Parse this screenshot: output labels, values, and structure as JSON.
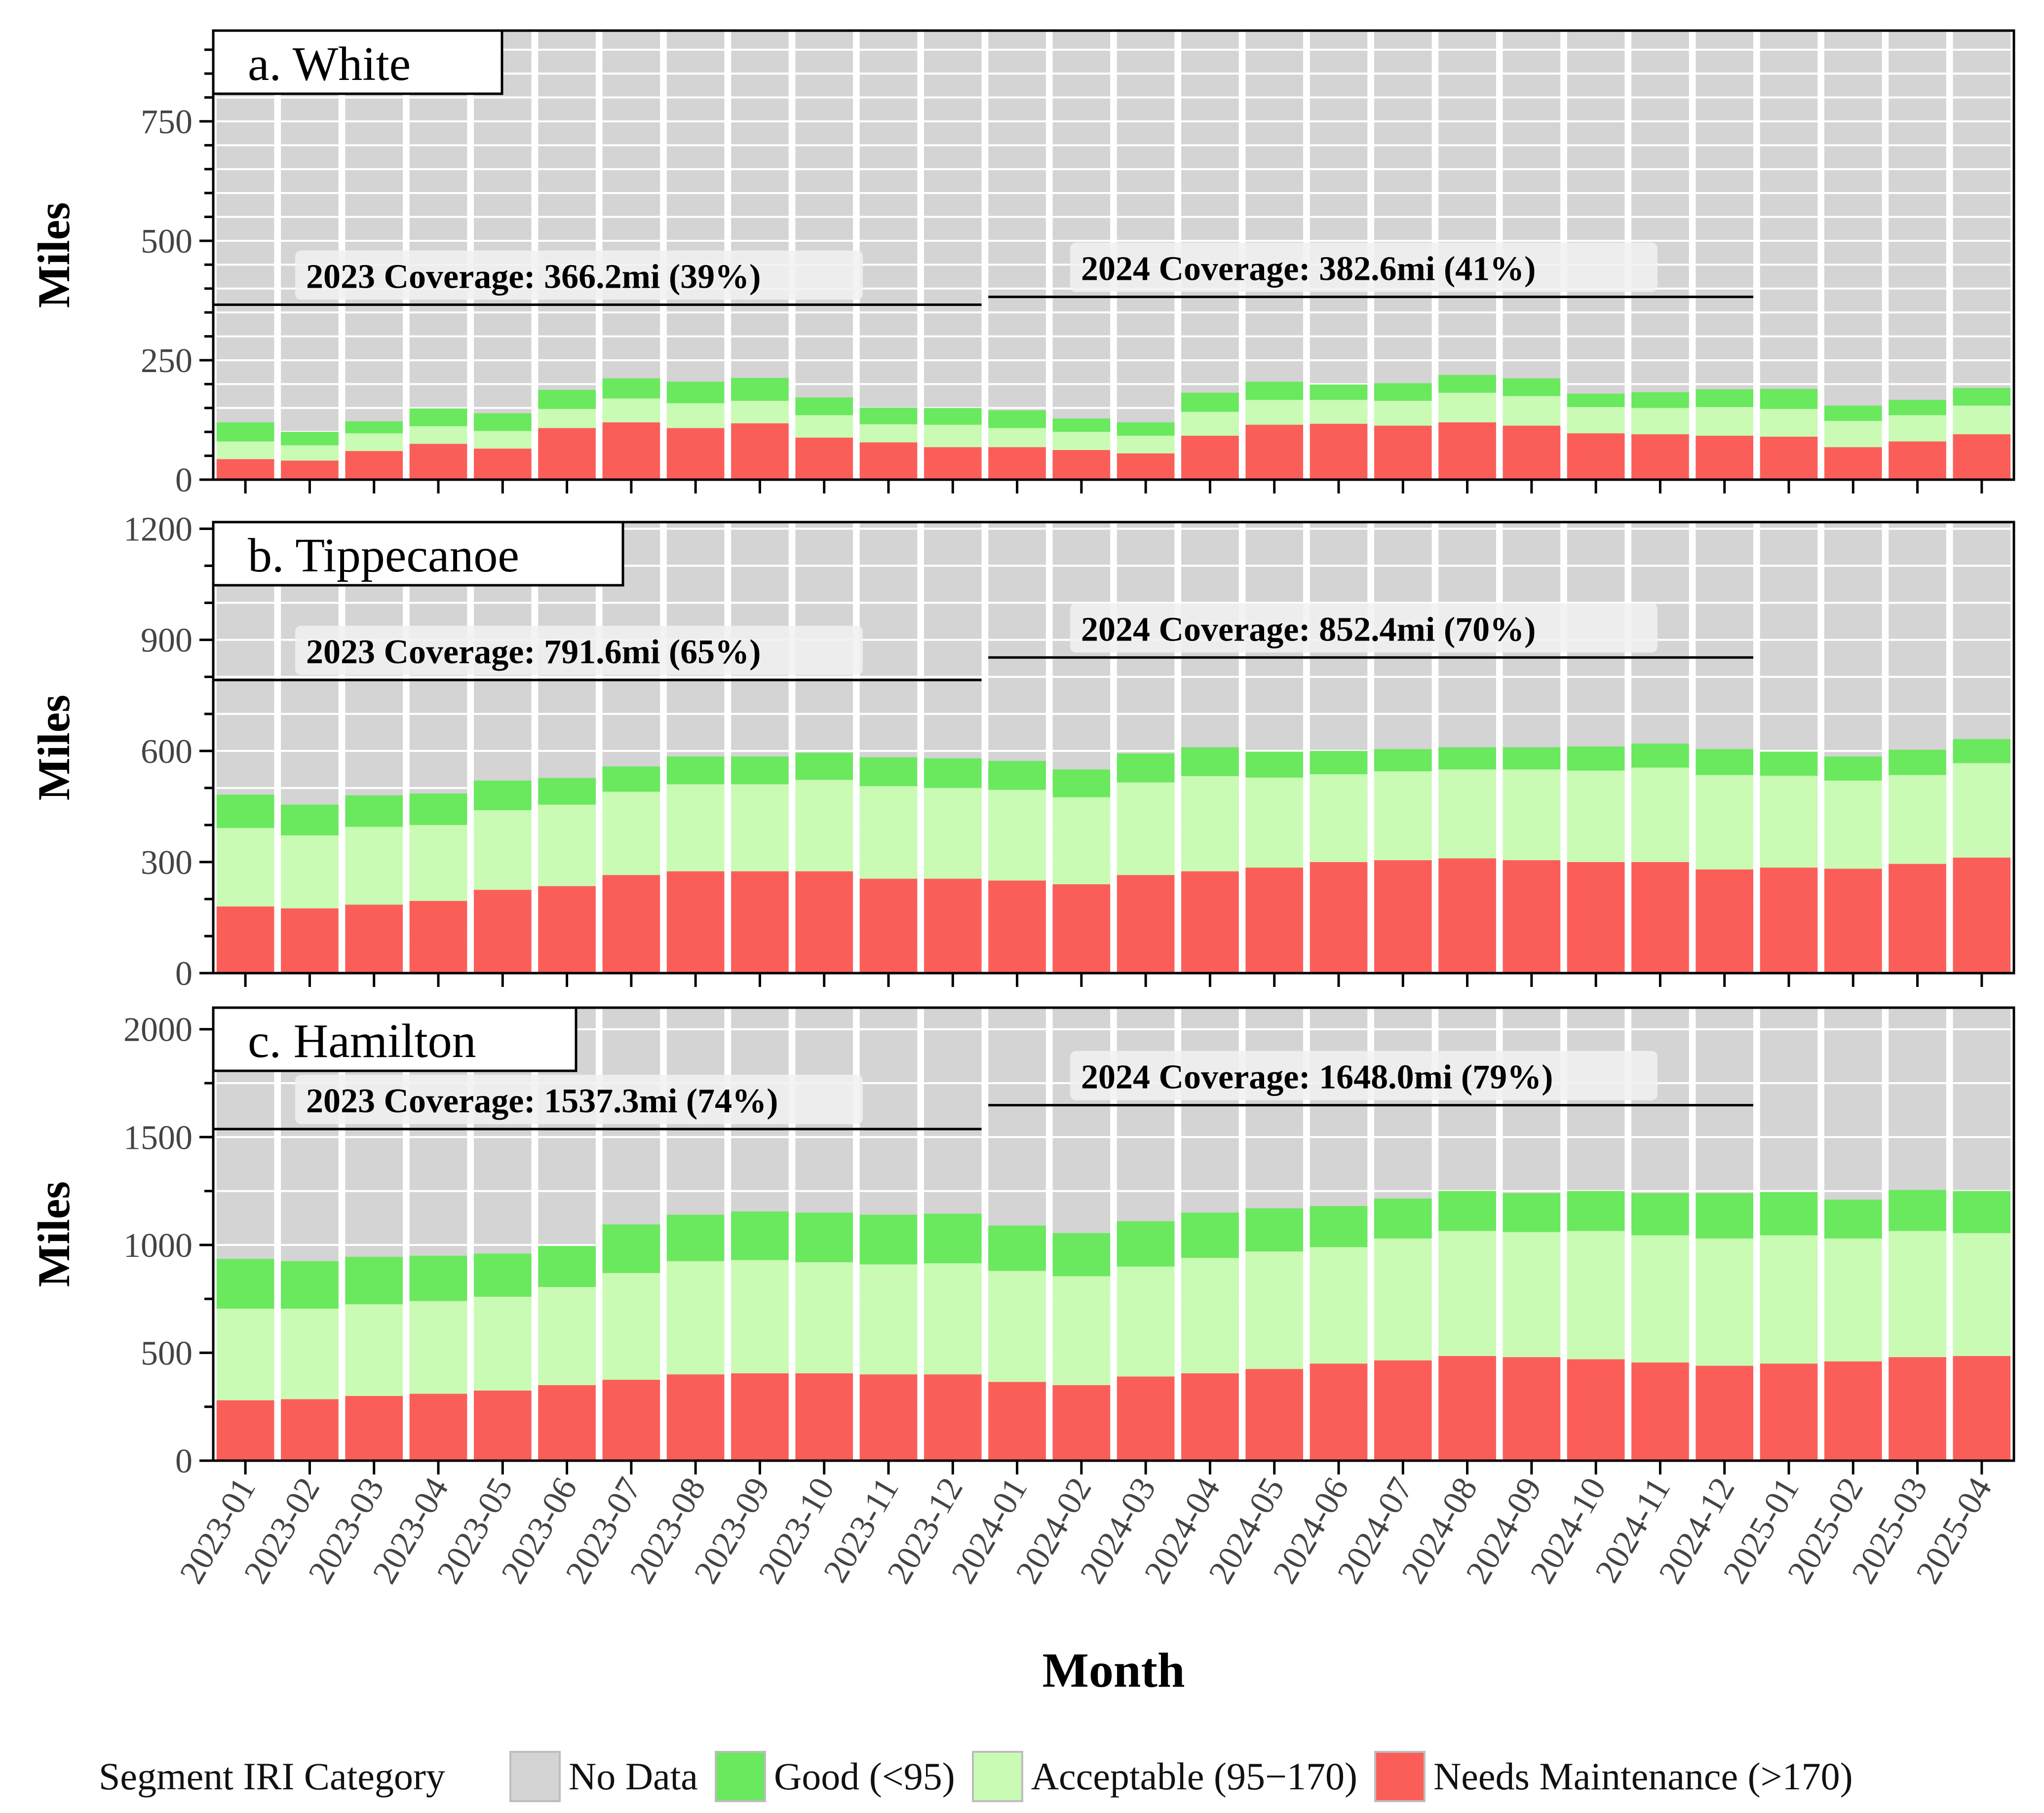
{
  "chart_data": {
    "type": "bar",
    "stacked": true,
    "xlabel": "Month",
    "ylabel": "Miles",
    "categories": [
      "2023-01",
      "2023-02",
      "2023-03",
      "2023-04",
      "2023-05",
      "2023-06",
      "2023-07",
      "2023-08",
      "2023-09",
      "2023-10",
      "2023-11",
      "2023-12",
      "2024-01",
      "2024-02",
      "2024-03",
      "2024-04",
      "2024-05",
      "2024-06",
      "2024-07",
      "2024-08",
      "2024-09",
      "2024-10",
      "2024-11",
      "2024-12",
      "2025-01",
      "2025-02",
      "2025-03",
      "2025-04"
    ],
    "legend": {
      "title": "Segment IRI Category",
      "placement": "bottom",
      "items": [
        {
          "label": "No Data",
          "color": "#d4d4d4"
        },
        {
          "label": "Good (<95)",
          "color": "#6ae85e"
        },
        {
          "label": "Acceptable (95−170)",
          "color": "#c9fbb4"
        },
        {
          "label": "Needs Maintenance (>170)",
          "color": "#fb5e58"
        }
      ]
    },
    "panels": [
      {
        "title": "a. White",
        "total_miles": 940,
        "ylim": [
          0,
          940
        ],
        "yticks": [
          0,
          250,
          500,
          750
        ],
        "minor_step": 50,
        "coverage": [
          {
            "label": "2023 Coverage:  366.2mi (39%)",
            "value": 366.2,
            "from": "2023-01",
            "to": "2023-12"
          },
          {
            "label": "2024 Coverage:  382.6mi (41%)",
            "value": 382.6,
            "from": "2024-01",
            "to": "2024-12"
          }
        ],
        "series": [
          {
            "name": "Needs Maintenance (>170)",
            "values": [
              43,
              40,
              60,
              75,
              65,
              108,
              120,
              108,
              118,
              88,
              78,
              68,
              68,
              62,
              55,
              92,
              115,
              117,
              113,
              120,
              113,
              97,
              95,
              92,
              90,
              68,
              80,
              95
            ]
          },
          {
            "name": "Acceptable (95−170)",
            "values": [
              37,
              32,
              37,
              37,
              37,
              40,
              50,
              52,
              47,
              47,
              38,
              47,
              40,
              38,
              37,
              50,
              52,
              50,
              52,
              62,
              62,
              55,
              55,
              60,
              58,
              55,
              55,
              60
            ]
          },
          {
            "name": "Good (<95)",
            "values": [
              40,
              28,
              25,
              37,
              37,
              40,
              42,
              45,
              48,
              37,
              35,
              35,
              37,
              28,
              28,
              40,
              38,
              32,
              37,
              37,
              37,
              28,
              33,
              37,
              42,
              32,
              32,
              37
            ]
          }
        ]
      },
      {
        "title": "b. Tippecanoe",
        "total_miles": 1218,
        "ylim": [
          0,
          1218
        ],
        "yticks": [
          0,
          300,
          600,
          900,
          1200
        ],
        "minor_step": 100,
        "coverage": [
          {
            "label": "2023 Coverage:  791.6mi (65%)",
            "value": 791.6,
            "from": "2023-01",
            "to": "2023-12"
          },
          {
            "label": "2024 Coverage:  852.4mi (70%)",
            "value": 852.4,
            "from": "2024-01",
            "to": "2024-12"
          }
        ],
        "series": [
          {
            "name": "Needs Maintenance (>170)",
            "values": [
              180,
              175,
              185,
              195,
              225,
              235,
              265,
              275,
              275,
              275,
              255,
              255,
              250,
              240,
              265,
              275,
              285,
              300,
              305,
              310,
              305,
              300,
              300,
              280,
              285,
              282,
              295,
              312
            ]
          },
          {
            "name": "Acceptable (95−170)",
            "values": [
              212,
              197,
              210,
              205,
              215,
              220,
              225,
              235,
              235,
              247,
              250,
              245,
              245,
              235,
              250,
              257,
              243,
              237,
              240,
              240,
              245,
              247,
              255,
              255,
              248,
              238,
              240,
              255
            ]
          },
          {
            "name": "Good (<95)",
            "values": [
              90,
              83,
              85,
              85,
              80,
              72,
              68,
              75,
              75,
              73,
              78,
              80,
              78,
              75,
              78,
              78,
              70,
              63,
              60,
              60,
              60,
              65,
              65,
              70,
              65,
              65,
              68,
              65
            ]
          }
        ]
      },
      {
        "title": "c. Hamilton",
        "total_miles": 2100,
        "ylim": [
          0,
          2100
        ],
        "yticks": [
          0,
          500,
          1000,
          1500,
          2000
        ],
        "minor_step": 250,
        "coverage": [
          {
            "label": "2023 Coverage:  1537.3mi (74%)",
            "value": 1537.3,
            "from": "2023-01",
            "to": "2023-12"
          },
          {
            "label": "2024 Coverage:  1648.0mi (79%)",
            "value": 1648.0,
            "from": "2024-01",
            "to": "2024-12"
          }
        ],
        "series": [
          {
            "name": "Needs Maintenance (>170)",
            "values": [
              280,
              285,
              300,
              310,
              325,
              350,
              375,
              400,
              405,
              405,
              400,
              400,
              365,
              350,
              390,
              405,
              425,
              450,
              465,
              485,
              480,
              470,
              455,
              440,
              450,
              460,
              480,
              485
            ]
          },
          {
            "name": "Acceptable (95−170)",
            "values": [
              425,
              420,
              425,
              430,
              435,
              455,
              495,
              525,
              525,
              515,
              510,
              515,
              515,
              505,
              510,
              535,
              545,
              540,
              565,
              580,
              580,
              595,
              590,
              590,
              595,
              570,
              585,
              570
            ]
          },
          {
            "name": "Good (<95)",
            "values": [
              230,
              220,
              220,
              210,
              200,
              190,
              225,
              215,
              225,
              230,
              230,
              230,
              210,
              200,
              210,
              210,
              200,
              190,
              185,
              185,
              180,
              185,
              195,
              210,
              200,
              180,
              190,
              195
            ]
          }
        ]
      }
    ]
  }
}
